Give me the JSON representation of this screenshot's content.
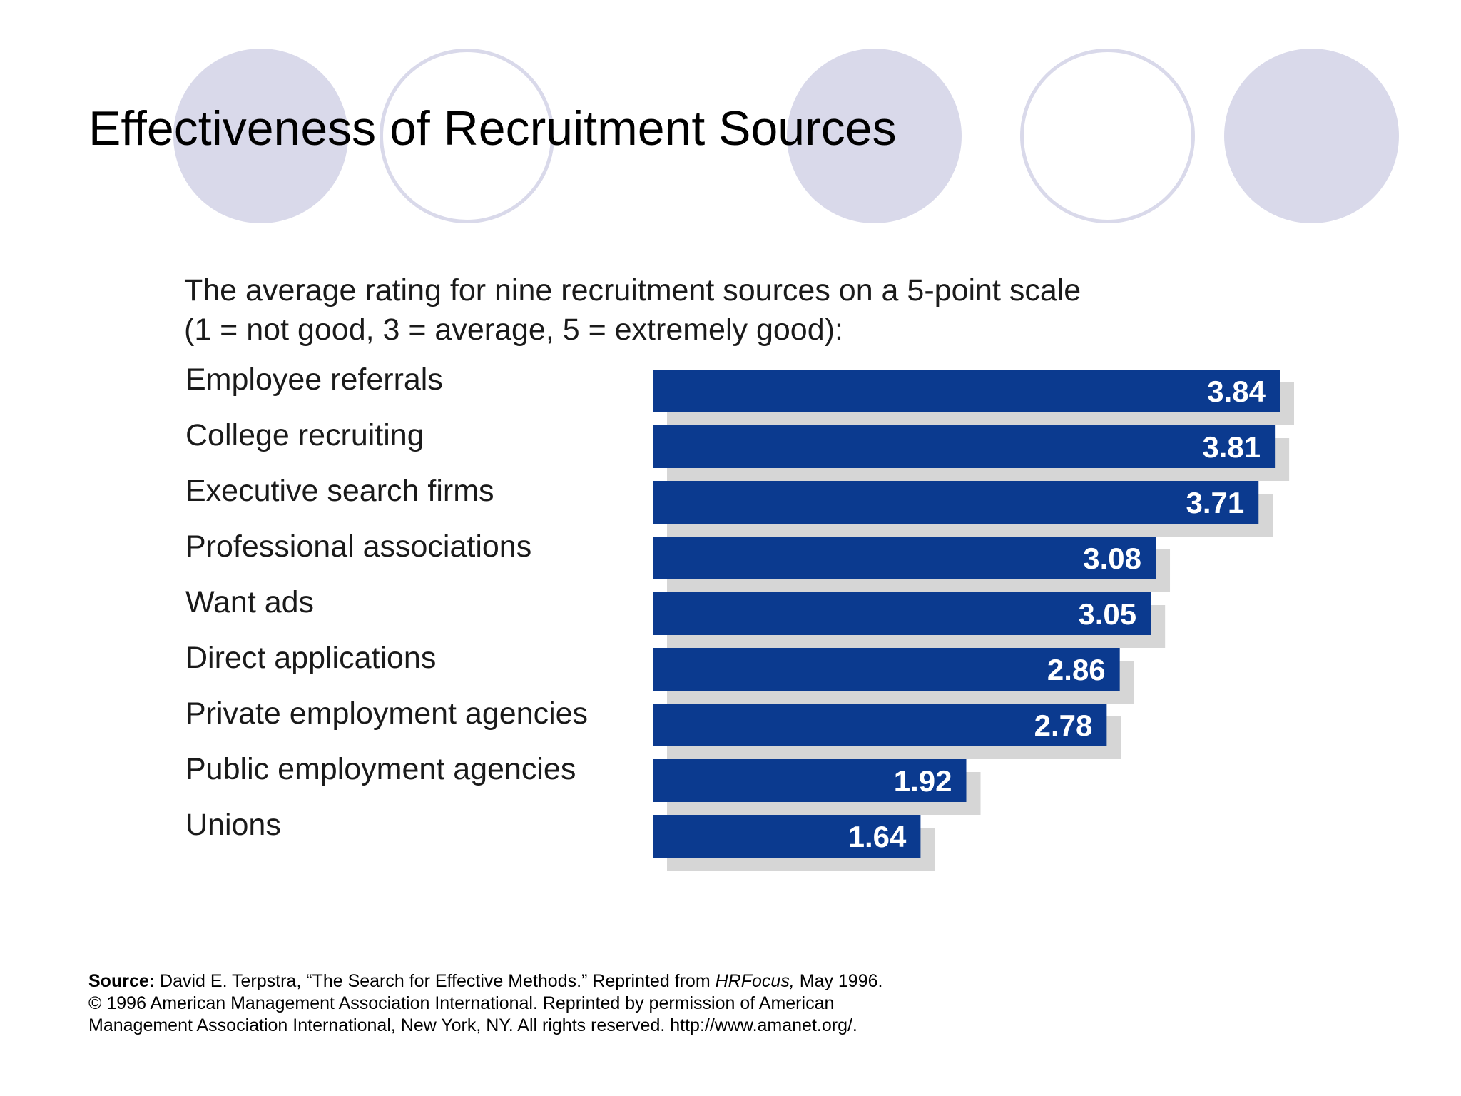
{
  "slide": {
    "title": "Effectiveness of Recruitment Sources"
  },
  "chart_data": {
    "type": "bar",
    "orientation": "horizontal",
    "title_lines": [
      "The average rating for nine recruitment sources on a 5-point scale",
      "(1 = not good, 3 = average, 5 = extremely good):"
    ],
    "categories": [
      "Employee referrals",
      "College recruiting",
      "Executive search firms",
      "Professional associations",
      "Want ads",
      "Direct applications",
      "Private employment agencies",
      "Public employment agencies",
      "Unions"
    ],
    "values": [
      3.84,
      3.81,
      3.71,
      3.08,
      3.05,
      2.86,
      2.78,
      1.92,
      1.64
    ],
    "value_labels": [
      "3.84",
      "3.81",
      "3.71",
      "3.08",
      "3.05",
      "2.86",
      "2.78",
      "1.92",
      "1.64"
    ],
    "xlim": [
      0,
      3.84
    ],
    "bar_color": "#0b3a8f",
    "shadow_color": "#d6d6d6",
    "grid": false,
    "legend": "none"
  },
  "source": {
    "label": "Source:",
    "line1_pre": "David E. Terpstra, “The Search for Effective Methods.” Reprinted from ",
    "line1_publication": "HRFocus,",
    "line1_post": " May 1996.",
    "line2": "© 1996 American Management Association International. Reprinted by permission of American",
    "line3": "Management Association International, New York, NY. All rights reserved. http://www.amanet.org/."
  },
  "decorations": {
    "circle_color": "#d9d9ea"
  }
}
